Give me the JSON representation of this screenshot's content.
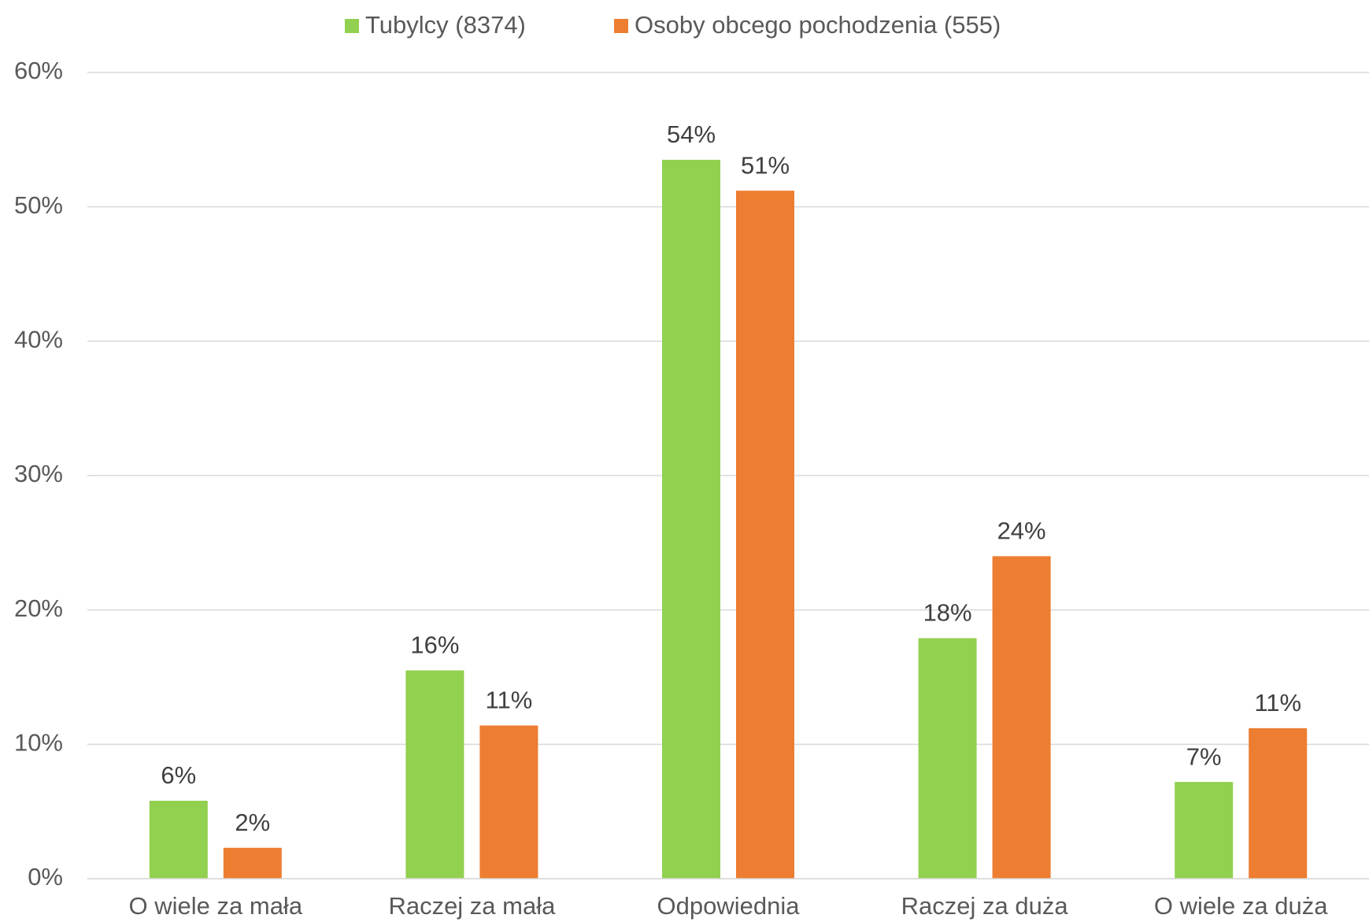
{
  "chart_data": {
    "type": "bar",
    "categories": [
      "O wiele za mała",
      "Raczej za mała",
      "Odpowiednia",
      "Raczej za duża",
      "O wiele za duża"
    ],
    "series": [
      {
        "name": "Tubylcy (8374)",
        "color": "#92d050",
        "values": [
          5.8,
          15.5,
          53.5,
          17.9,
          7.2
        ],
        "value_labels": [
          "6%",
          "16%",
          "54%",
          "18%",
          "7%"
        ]
      },
      {
        "name": "Osoby obcego pochodzenia (555)",
        "color": "#ed7d31",
        "values": [
          2.3,
          11.4,
          51.2,
          24.0,
          11.2
        ],
        "value_labels": [
          "2%",
          "11%",
          "51%",
          "24%",
          "11%"
        ]
      }
    ],
    "ylim": [
      0,
      60
    ],
    "yticks": [
      {
        "value": 0,
        "label": "0%"
      },
      {
        "value": 10,
        "label": "10%"
      },
      {
        "value": 20,
        "label": "20%"
      },
      {
        "value": 30,
        "label": "30%"
      },
      {
        "value": 40,
        "label": "40%"
      },
      {
        "value": 50,
        "label": "50%"
      },
      {
        "value": 60,
        "label": "60%"
      }
    ],
    "grid": true,
    "legend": "top"
  }
}
